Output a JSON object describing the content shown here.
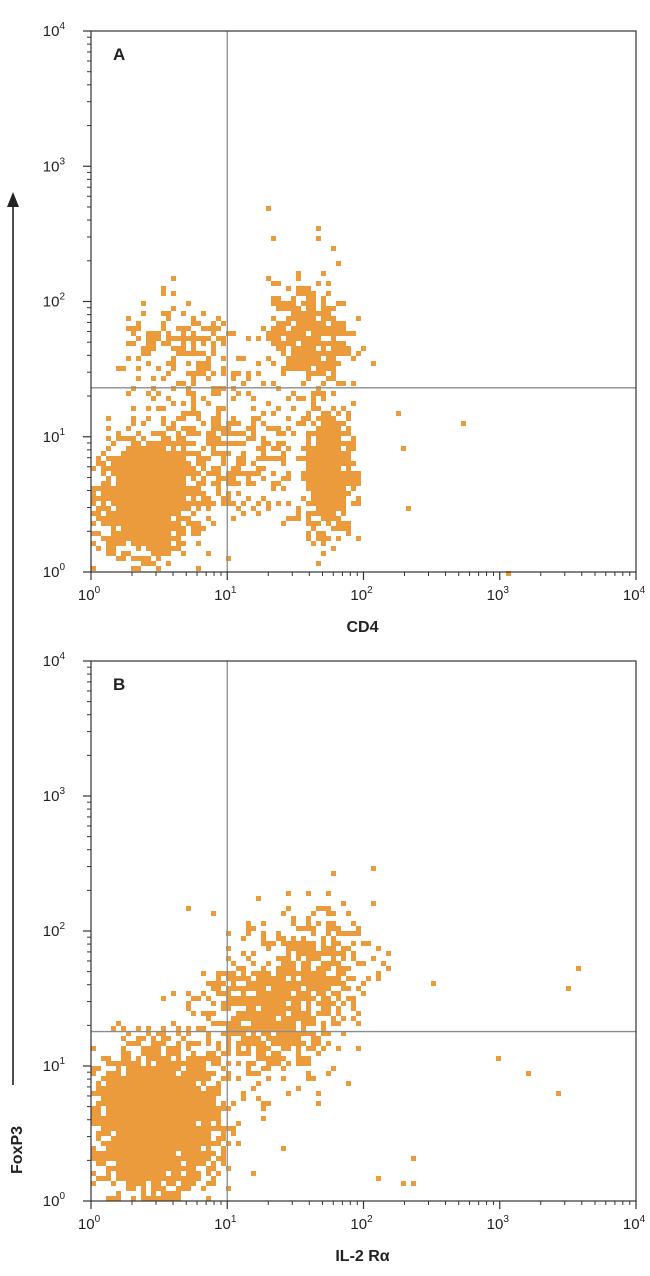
{
  "colors": {
    "dots": "#eb9b3c",
    "gate": "#8c8c8c",
    "frame": "#333333",
    "text": "#222222"
  },
  "shared_ylabel": "FoxP3",
  "chart_data": [
    {
      "type": "scatter",
      "panel": "A",
      "xlabel": "CD4",
      "ylabel": "FoxP3",
      "xscale": "log",
      "yscale": "log",
      "xlim": [
        1,
        10000
      ],
      "ylim": [
        1,
        10000
      ],
      "xticks": [
        "10^0",
        "10^1",
        "10^2",
        "10^3",
        "10^4"
      ],
      "yticks": [
        "10^0",
        "10^1",
        "10^2",
        "10^3",
        "10^4"
      ],
      "quadrant_gate": {
        "x": 10,
        "y": 23
      },
      "clusters": [
        {
          "center": [
            2.5,
            3.5
          ],
          "spread": [
            0.17,
            0.2
          ],
          "n": 1300
        },
        {
          "center": [
            55,
            5.5
          ],
          "spread": [
            0.08,
            0.22
          ],
          "n": 700
        },
        {
          "center": [
            40,
            55
          ],
          "spread": [
            0.14,
            0.2
          ],
          "n": 380
        },
        {
          "center": [
            8,
            8
          ],
          "spread": [
            0.32,
            0.3
          ],
          "n": 420
        },
        {
          "center": [
            5,
            45
          ],
          "spread": [
            0.24,
            0.16
          ],
          "n": 150
        }
      ],
      "points": [
        [
          20,
          480
        ],
        [
          45,
          340
        ],
        [
          62,
          250
        ],
        [
          3.5,
          130
        ],
        [
          180,
          15
        ],
        [
          200,
          8
        ],
        [
          210,
          3
        ],
        [
          540,
          13
        ],
        [
          1200,
          1
        ]
      ]
    },
    {
      "type": "scatter",
      "panel": "B",
      "xlabel": "IL-2 Rα",
      "ylabel": "FoxP3",
      "xscale": "log",
      "yscale": "log",
      "xlim": [
        1,
        10000
      ],
      "ylim": [
        1,
        10000
      ],
      "xticks": [
        "10^0",
        "10^1",
        "10^2",
        "10^3",
        "10^4"
      ],
      "yticks": [
        "10^0",
        "10^1",
        "10^2",
        "10^3",
        "10^4"
      ],
      "quadrant_gate": {
        "x": 10,
        "y": 18
      },
      "clusters": [
        {
          "center": [
            3,
            4
          ],
          "spread": [
            0.22,
            0.24
          ],
          "n": 2400
        },
        {
          "center": [
            20,
            25
          ],
          "spread": [
            0.25,
            0.24
          ],
          "n": 650
        },
        {
          "center": [
            45,
            60
          ],
          "spread": [
            0.2,
            0.2
          ],
          "n": 220
        }
      ],
      "points": [
        [
          120,
          290
        ],
        [
          320,
          42
        ],
        [
          1000,
          11
        ],
        [
          1600,
          8.5
        ],
        [
          2700,
          6
        ],
        [
          3300,
          38
        ],
        [
          3800,
          54
        ],
        [
          130,
          1.5
        ],
        [
          230,
          2
        ],
        [
          230,
          1.4
        ],
        [
          200,
          1.3
        ]
      ]
    }
  ]
}
